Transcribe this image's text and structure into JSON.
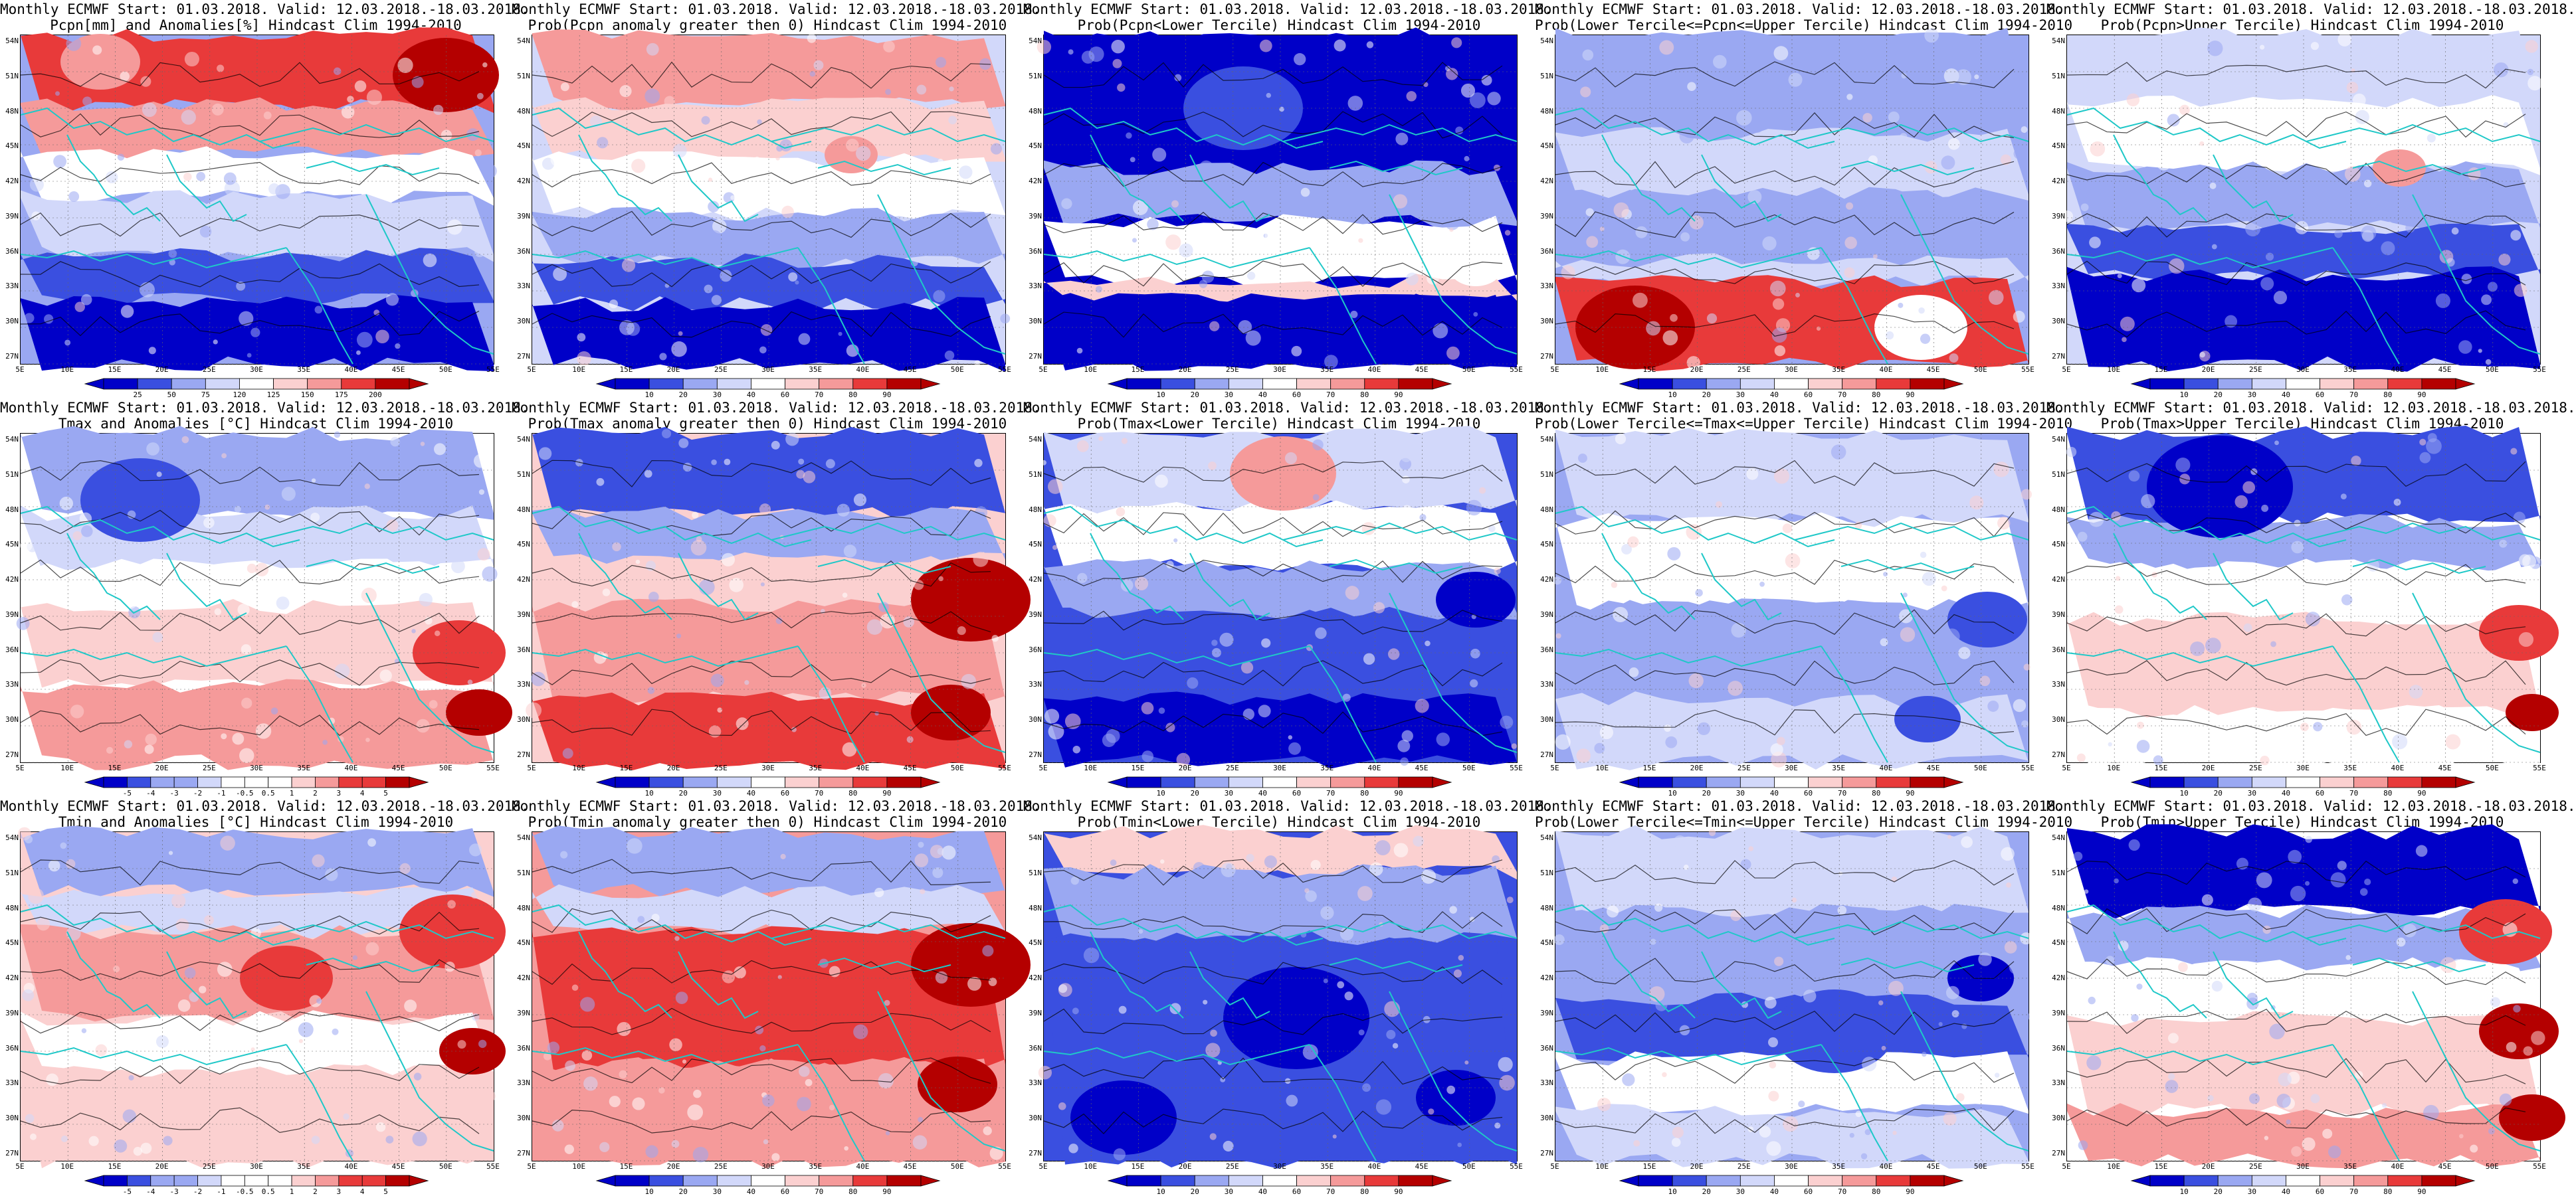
{
  "rows": [
    {
      "variable": "Pcpn",
      "panels": [
        {
          "line1": "Monthly ECMWF Start: 01.03.2018. Valid: 12.03.2018.-18.03.2018.",
          "line2": "Pcpn[mm] and Anomalies[%] Hindcast Clim 1994-2010",
          "colorbar": [
            "25",
            "50",
            "75",
            "120",
            "125",
            "150",
            "175",
            "200"
          ]
        },
        {
          "line1": "Monthly ECMWF Start: 01.03.2018. Valid: 12.03.2018.-18.03.2018.",
          "line2": "Prob(Pcpn anomaly greater then 0) Hindcast Clim 1994-2010",
          "colorbar": [
            "10",
            "20",
            "30",
            "40",
            "60",
            "70",
            "80",
            "90"
          ]
        },
        {
          "line1": "Monthly ECMWF Start: 01.03.2018. Valid: 12.03.2018.-18.03.2018.",
          "line2": "Prob(Pcpn<Lower Tercile) Hindcast Clim 1994-2010",
          "colorbar": [
            "10",
            "20",
            "30",
            "40",
            "60",
            "70",
            "80",
            "90"
          ]
        },
        {
          "line1": "Monthly ECMWF Start: 01.03.2018. Valid: 12.03.2018.-18.03.2018.",
          "line2": "Prob(Lower Tercile<=Pcpn<=Upper Tercile) Hindcast Clim 1994-2010",
          "colorbar": [
            "10",
            "20",
            "30",
            "40",
            "60",
            "70",
            "80",
            "90"
          ]
        },
        {
          "line1": "Monthly ECMWF Start: 01.03.2018. Valid: 12.03.2018.-18.03.2018.",
          "line2": "Prob(Pcpn>Upper Tercile) Hindcast Clim 1994-2010",
          "colorbar": [
            "10",
            "20",
            "30",
            "40",
            "60",
            "70",
            "80",
            "90"
          ]
        }
      ]
    },
    {
      "variable": "Tmax",
      "panels": [
        {
          "line1": "Monthly ECMWF Start: 01.03.2018. Valid: 12.03.2018.-18.03.2018.",
          "line2": "Tmax and Anomalies [°C] Hindcast Clim 1994-2010",
          "colorbar": [
            "-5",
            "-4",
            "-3",
            "-2",
            "-1",
            "-0.5",
            "0.5",
            "1",
            "2",
            "3",
            "4",
            "5"
          ]
        },
        {
          "line1": "Monthly ECMWF Start: 01.03.2018. Valid: 12.03.2018.-18.03.2018.",
          "line2": "Prob(Tmax anomaly greater then 0) Hindcast Clim 1994-2010",
          "colorbar": [
            "10",
            "20",
            "30",
            "40",
            "60",
            "70",
            "80",
            "90"
          ]
        },
        {
          "line1": "Monthly ECMWF Start: 01.03.2018. Valid: 12.03.2018.-18.03.2018.",
          "line2": "Prob(Tmax<Lower Tercile) Hindcast Clim 1994-2010",
          "colorbar": [
            "10",
            "20",
            "30",
            "40",
            "60",
            "70",
            "80",
            "90"
          ]
        },
        {
          "line1": "Monthly ECMWF Start: 01.03.2018. Valid: 12.03.2018.-18.03.2018.",
          "line2": "Prob(Lower Tercile<=Tmax<=Upper Tercile) Hindcast Clim 1994-2010",
          "colorbar": [
            "10",
            "20",
            "30",
            "40",
            "60",
            "70",
            "80",
            "90"
          ]
        },
        {
          "line1": "Monthly ECMWF Start: 01.03.2018. Valid: 12.03.2018.-18.03.2018.",
          "line2": "Prob(Tmax>Upper Tercile) Hindcast Clim 1994-2010",
          "colorbar": [
            "10",
            "20",
            "30",
            "40",
            "60",
            "70",
            "80",
            "90"
          ]
        }
      ]
    },
    {
      "variable": "Tmin",
      "panels": [
        {
          "line1": "Monthly ECMWF Start: 01.03.2018. Valid: 12.03.2018.-18.03.2018.",
          "line2": "Tmin and Anomalies [°C] Hindcast Clim 1994-2010",
          "colorbar": [
            "-5",
            "-4",
            "-3",
            "-2",
            "-1",
            "-0.5",
            "0.5",
            "1",
            "2",
            "3",
            "4",
            "5"
          ]
        },
        {
          "line1": "Monthly ECMWF Start: 01.03.2018. Valid: 12.03.2018.-18.03.2018.",
          "line2": "Prob(Tmin anomaly greater then 0) Hindcast Clim 1994-2010",
          "colorbar": [
            "10",
            "20",
            "30",
            "40",
            "60",
            "70",
            "80",
            "90"
          ]
        },
        {
          "line1": "Monthly ECMWF Start: 01.03.2018. Valid: 12.03.2018.-18.03.2018.",
          "line2": "Prob(Tmin<Lower Tercile) Hindcast Clim 1994-2010",
          "colorbar": [
            "10",
            "20",
            "30",
            "40",
            "60",
            "70",
            "80",
            "90"
          ]
        },
        {
          "line1": "Monthly ECMWF Start: 01.03.2018. Valid: 12.03.2018.-18.03.2018.",
          "line2": "Prob(Lower Tercile<=Tmin<=Upper Tercile) Hindcast Clim 1994-2010",
          "colorbar": [
            "10",
            "20",
            "30",
            "40",
            "60",
            "70",
            "80",
            "90"
          ]
        },
        {
          "line1": "Monthly ECMWF Start: 01.03.2018. Valid: 12.03.2018.-18.03.2018.",
          "line2": "Prob(Tmin>Upper Tercile) Hindcast Clim 1994-2010",
          "colorbar": [
            "10",
            "20",
            "30",
            "40",
            "60",
            "70",
            "80",
            "90"
          ]
        }
      ]
    }
  ],
  "lat_labels": [
    "54N",
    "51N",
    "48N",
    "45N",
    "42N",
    "39N",
    "36N",
    "33N",
    "30N",
    "27N"
  ],
  "lon_labels": [
    "5E",
    "10E",
    "15E",
    "20E",
    "25E",
    "30E",
    "35E",
    "40E",
    "45E",
    "50E",
    "55E"
  ],
  "colors": {
    "deep_blue": "#0000c8",
    "blue": "#3a4fe0",
    "light_blue": "#9aa8f2",
    "pale_blue": "#d2d8fa",
    "white": "#ffffff",
    "pale_red": "#fbd0d0",
    "light_red": "#f59a9a",
    "red": "#e83a3a",
    "deep_red": "#b40000",
    "coast": "#1fc8c8",
    "contour": "#000000"
  }
}
